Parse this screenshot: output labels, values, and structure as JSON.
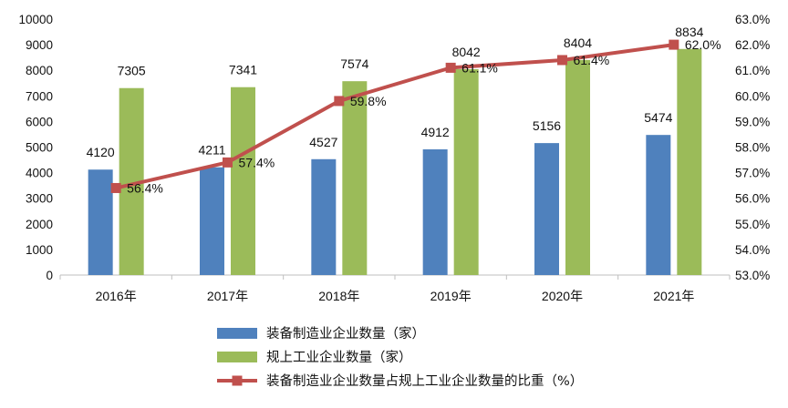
{
  "chart_data": {
    "type": "bar+line",
    "categories": [
      "2016年",
      "2017年",
      "2018年",
      "2019年",
      "2020年",
      "2021年"
    ],
    "series": [
      {
        "name": "装备制造业企业数量（家）",
        "type": "bar",
        "axis": "left",
        "color": "#4f81bd",
        "values": [
          4120,
          4211,
          4527,
          4912,
          5156,
          5474
        ]
      },
      {
        "name": "规上工业企业数量（家）",
        "type": "bar",
        "axis": "left",
        "color": "#9bbb59",
        "values": [
          7305,
          7341,
          7574,
          8042,
          8404,
          8834
        ]
      },
      {
        "name": "装备制造业企业数量占规上工业企业数量的比重（%）",
        "type": "line",
        "axis": "right",
        "color": "#c0504d",
        "values": [
          56.4,
          57.4,
          59.8,
          61.1,
          61.4,
          62.0
        ],
        "labels": [
          "56.4%",
          "57.4%",
          "59.8%",
          "61.1%",
          "61.4%",
          "62.0%"
        ]
      }
    ],
    "left_axis": {
      "min": 0,
      "max": 10000,
      "step": 1000,
      "ticks": [
        "0",
        "1000",
        "2000",
        "3000",
        "4000",
        "5000",
        "6000",
        "7000",
        "8000",
        "9000",
        "10000"
      ]
    },
    "right_axis": {
      "min": 53.0,
      "max": 63.0,
      "step": 1.0,
      "ticks": [
        "53.0%",
        "54.0%",
        "55.0%",
        "56.0%",
        "57.0%",
        "58.0%",
        "59.0%",
        "60.0%",
        "61.0%",
        "62.0%",
        "63.0%"
      ]
    },
    "legend_position": "bottom",
    "grid": false
  }
}
